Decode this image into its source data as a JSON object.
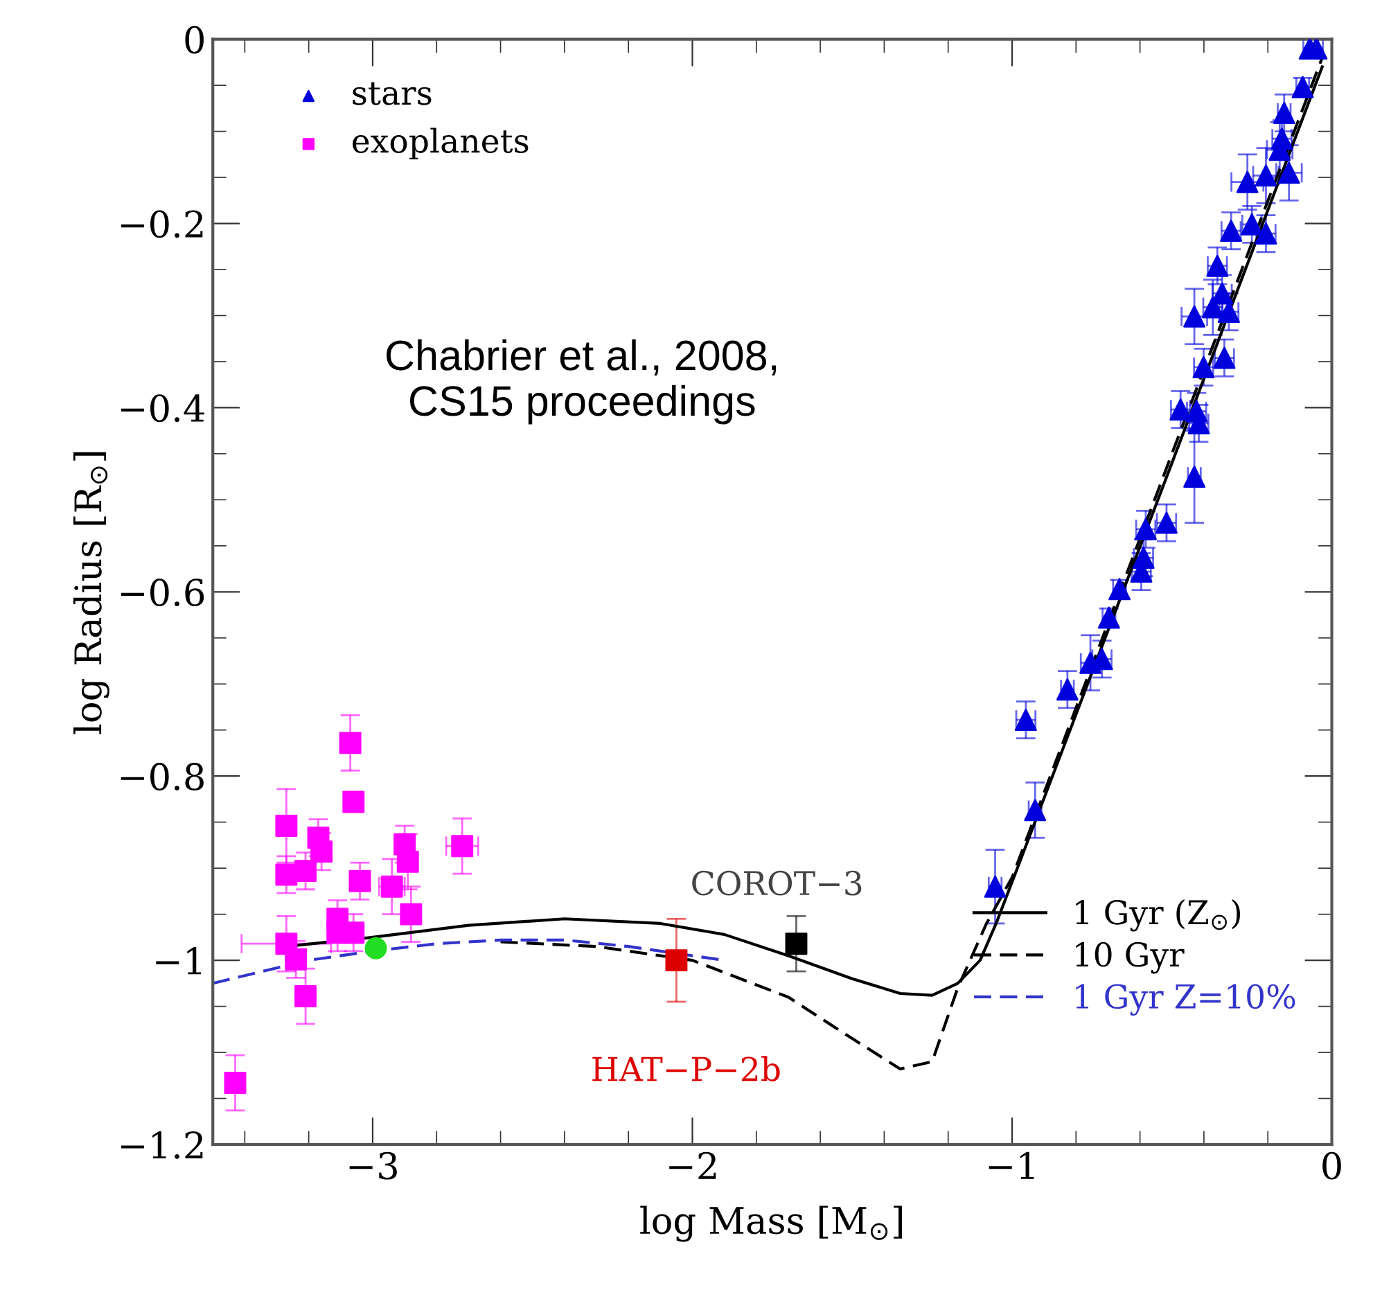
{
  "chart_data": {
    "type": "scatter",
    "xlabel": "log Mass [M$_{⊙}$]",
    "ylabel": "log Radius [R$_{⊙}$]",
    "xlim": [
      -3.5,
      0
    ],
    "ylim": [
      -1.2,
      0
    ],
    "xticks": [
      {
        "value": -3,
        "label": "−3"
      },
      {
        "value": -2,
        "label": "−2"
      },
      {
        "value": -1,
        "label": "−1"
      },
      0
    ],
    "yticks": [
      {
        "value": -1.2,
        "label": "−1.2"
      },
      {
        "value": -1,
        "label": "−1"
      },
      {
        "value": -0.8,
        "label": "−0.8"
      },
      {
        "value": -0.6,
        "label": "−0.6"
      },
      {
        "value": -0.4,
        "label": "−0.4"
      },
      {
        "value": -0.2,
        "label": "−0.2"
      },
      0
    ],
    "grid": false,
    "legend": "top left",
    "annotations": [
      "Chabrier et al., 2008,\nCS15 proceedings",
      {
        "text": "HAT−P−2b",
        "x": -2.05,
        "y": -1.0
      },
      {
        "text": "COROT−3",
        "x": -1.675,
        "y": -0.982
      }
    ],
    "series": [
      {
        "name": "stars",
        "marker": "triangle",
        "color": "#0000dd",
        "x": [
          -0.069,
          -0.048,
          -0.091,
          -0.149,
          -0.156,
          -0.163,
          -0.264,
          -0.206,
          -0.134,
          -0.315,
          -0.25,
          -0.206,
          -0.358,
          -0.343,
          -0.43,
          -0.372,
          -0.322,
          -0.401,
          -0.336,
          -0.473,
          -0.423,
          -0.416,
          -0.43,
          -0.517,
          -0.582,
          -0.589,
          -0.596,
          -0.664,
          -0.697,
          -0.719,
          -0.755,
          -0.827,
          -0.957,
          -0.928,
          -1.053
        ],
        "values": [
          -0.01,
          -0.01,
          -0.052,
          -0.08,
          -0.108,
          -0.12,
          -0.155,
          -0.148,
          -0.145,
          -0.208,
          -0.201,
          -0.211,
          -0.246,
          -0.276,
          -0.301,
          -0.291,
          -0.296,
          -0.356,
          -0.346,
          -0.402,
          -0.404,
          -0.417,
          -0.475,
          -0.525,
          -0.532,
          -0.563,
          -0.578,
          -0.597,
          -0.628,
          -0.673,
          -0.677,
          -0.706,
          -0.739,
          -0.837,
          -0.92
        ],
        "errors": [
          0.01,
          0.01,
          0.01,
          0.02,
          0.02,
          0.03,
          0.03,
          0.03,
          0.03,
          0.02,
          0.02,
          0.02,
          0.02,
          0.02,
          0.03,
          0.03,
          0.02,
          0.02,
          0.02,
          0.02,
          0.02,
          0.02,
          0.05,
          0.02,
          0.02,
          0.02,
          0.02,
          0.01,
          0.01,
          0.02,
          0.03,
          0.02,
          0.02,
          0.03,
          0.04
        ],
        "xerrors": [
          0.02,
          0.02,
          0.02,
          0.02,
          0.03,
          0.04,
          0.05,
          0.04,
          0.04,
          0.03,
          0.03,
          0.03,
          0.03,
          0.03,
          0.04,
          0.03,
          0.03,
          0.03,
          0.03,
          0.03,
          0.03,
          0.03,
          0.02,
          0.03,
          0.03,
          0.03,
          0.03,
          0.02,
          0.02,
          0.03,
          0.03,
          0.02,
          0.03,
          0.02,
          0.02
        ]
      },
      {
        "name": "exoplanets",
        "marker": "square",
        "color": "#ff00ff",
        "x": [
          -3.07,
          -3.06,
          -3.27,
          -3.17,
          -3.16,
          -3.27,
          -3.21,
          -3.04,
          -2.9,
          -2.89,
          -2.94,
          -2.72,
          -2.88,
          -3.11,
          -3.06,
          -3.11,
          -3.27,
          -3.24,
          -3.21,
          -3.43
        ],
        "values": [
          -0.764,
          -0.828,
          -0.854,
          -0.867,
          -0.882,
          -0.907,
          -0.903,
          -0.914,
          -0.874,
          -0.893,
          -0.92,
          -0.876,
          -0.95,
          -0.955,
          -0.97,
          -0.97,
          -0.982,
          -0.999,
          -1.039,
          -1.133
        ],
        "errors": [
          0.03,
          0.01,
          0.04,
          0.02,
          0.02,
          0.02,
          0.02,
          0.02,
          0.02,
          0.03,
          0.03,
          0.03,
          0.03,
          0.02,
          0.02,
          0.02,
          0.03,
          0.02,
          0.03,
          0.03
        ],
        "xerrors": [
          0.03,
          0.02,
          0.03,
          0.03,
          0.03,
          0.03,
          0.03,
          0.02,
          0.03,
          0.03,
          0.04,
          0.05,
          0.03,
          0.03,
          0.03,
          0.03,
          0.14,
          0.03,
          0.03,
          0.02
        ]
      },
      {
        "marker": "circle",
        "color": "#22dd22",
        "x": [
          -2.99
        ],
        "values": [
          -0.987
        ]
      },
      {
        "marker": "square",
        "color": "#dd0000",
        "x": [
          -2.05
        ],
        "values": [
          -1.0
        ],
        "errors": [
          0.045
        ]
      },
      {
        "marker": "square",
        "color": "#000000",
        "x": [
          -1.675
        ],
        "values": [
          -0.982
        ],
        "errors": [
          0.03
        ]
      },
      {
        "name": "1 Gyr (Z$_{⊙}$)",
        "type": "line",
        "line_style": "solid",
        "color": "#000000",
        "x": [
          -3.27,
          -3.0,
          -2.7,
          -2.4,
          -2.1,
          -1.9,
          -1.7,
          -1.5,
          -1.35,
          -1.25,
          -1.17,
          -1.1,
          -1.05,
          -1.0,
          -0.5,
          -0.03
        ],
        "values": [
          -0.985,
          -0.975,
          -0.962,
          -0.955,
          -0.96,
          -0.972,
          -0.995,
          -1.02,
          -1.036,
          -1.038,
          -1.025,
          -1.0,
          -0.96,
          -0.915,
          -0.46,
          -0.03
        ]
      },
      {
        "name": "10 Gyr",
        "type": "line",
        "line_style": "dashed",
        "color": "#000000",
        "x": [
          -2.6,
          -2.3,
          -2.0,
          -1.7,
          -1.5,
          -1.35,
          -1.25,
          -1.17,
          -1.08,
          -1.0,
          -0.5,
          -0.03
        ],
        "values": [
          -0.98,
          -0.985,
          -1.0,
          -1.04,
          -1.085,
          -1.118,
          -1.11,
          -1.03,
          -0.96,
          -0.91,
          -0.45,
          -0.02
        ]
      },
      {
        "name": "1 Gyr Z=10%",
        "type": "line",
        "line_style": "dashed",
        "color": "#3333cc",
        "x": [
          -3.5,
          -3.2,
          -3.0,
          -2.8,
          -2.6,
          -2.4,
          -2.2,
          -2.0,
          -1.9
        ],
        "values": [
          -1.025,
          -1.0,
          -0.99,
          -0.982,
          -0.978,
          -0.978,
          -0.985,
          -0.995,
          -1.0
        ]
      }
    ]
  }
}
